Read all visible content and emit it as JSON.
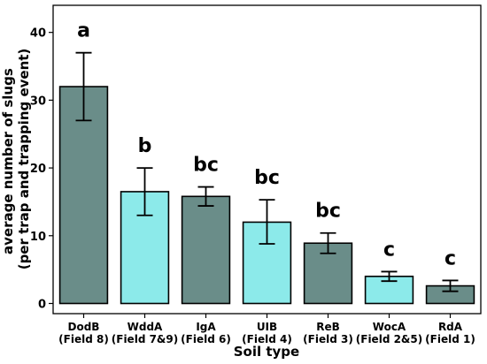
{
  "chart_data": {
    "type": "bar",
    "categories": [
      "DodB",
      "WddA",
      "IgA",
      "UIB",
      "ReB",
      "WocA",
      "RdA"
    ],
    "category_sublabels": [
      "(Field 8)",
      "(Field 7&9)",
      "(Field 6)",
      "(Field 4)",
      "(Field 3)",
      "(Field 2&5)",
      "(Field 1)"
    ],
    "values": [
      32,
      16.5,
      15.8,
      12,
      8.9,
      4,
      2.6
    ],
    "error_low": [
      27,
      13,
      14.4,
      8.8,
      7.4,
      3.3,
      1.8
    ],
    "error_high": [
      37,
      20,
      17.2,
      15.3,
      10.4,
      4.7,
      3.4
    ],
    "significance_letters": [
      "a",
      "b",
      "bc",
      "bc",
      "bc",
      "c",
      "c"
    ],
    "bar_colors": [
      "#6a8d89",
      "#8ceaea",
      "#6a8d89",
      "#8ceaea",
      "#6a8d89",
      "#8ceaea",
      "#6a8d89"
    ],
    "xlabel": "Soil type",
    "ylabel_lines": [
      "average number of slugs",
      "(per trap and trapping event)"
    ],
    "yticks": [
      0,
      10,
      20,
      30,
      40
    ],
    "ylim": [
      -1.5,
      44
    ],
    "grid": false,
    "title": ""
  }
}
